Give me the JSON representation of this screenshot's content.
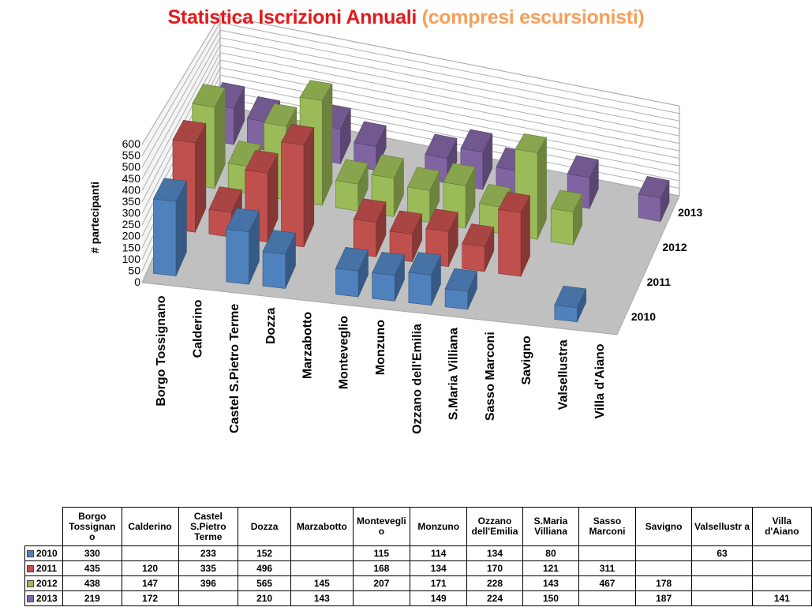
{
  "title": {
    "main": "Statistica Iscrizioni Annuali",
    "sub": "(compresi escursionisti)"
  },
  "chart_data": {
    "type": "bar",
    "subtype": "3d-column",
    "title": "Statistica Iscrizioni Annuali (compresi escursionisti)",
    "ylabel": "# partecipanti",
    "ylim": [
      0,
      600
    ],
    "yticks": [
      "0",
      "50",
      "100",
      "150",
      "200",
      "250",
      "300",
      "350",
      "400",
      "450",
      "500",
      "550",
      "600"
    ],
    "grid": true,
    "categories": [
      "Borgo Tossignano",
      "Calderino",
      "Castel S.Pietro Terme",
      "Dozza",
      "Marzabotto",
      "Monteveglio",
      "Monzuno",
      "Ozzano dell'Emilia",
      "S.Maria Villiana",
      "Sasso Marconi",
      "Savigno",
      "Valsellustra",
      "Villa d'Aiano"
    ],
    "series": [
      {
        "name": "2010",
        "color": "#4f81bd",
        "values": [
          330,
          null,
          233,
          152,
          null,
          115,
          114,
          134,
          80,
          null,
          null,
          63,
          null
        ]
      },
      {
        "name": "2011",
        "color": "#c0504d",
        "values": [
          435,
          120,
          335,
          496,
          null,
          168,
          134,
          170,
          121,
          311,
          null,
          null,
          null
        ]
      },
      {
        "name": "2012",
        "color": "#9bbb59",
        "values": [
          438,
          147,
          396,
          565,
          145,
          207,
          171,
          228,
          143,
          467,
          178,
          null,
          null
        ]
      },
      {
        "name": "2013",
        "color": "#8064a2",
        "values": [
          219,
          172,
          null,
          210,
          143,
          null,
          149,
          224,
          150,
          null,
          187,
          null,
          141
        ]
      }
    ]
  },
  "table": {
    "headers": [
      "Borgo Tossignan o",
      "Calderino",
      "Castel S.Pietro Terme",
      "Dozza",
      "Marzabotto",
      "Montevegli o",
      "Monzuno",
      "Ozzano dell'Emilia",
      "S.Maria Villiana",
      "Sasso Marconi",
      "Savigno",
      "Valsellustr a",
      "Villa d'Aiano"
    ],
    "rows": [
      {
        "label": "2010",
        "color": "#4f81bd",
        "cells": [
          "330",
          "",
          "233",
          "152",
          "",
          "115",
          "114",
          "134",
          "80",
          "",
          "",
          "63",
          ""
        ]
      },
      {
        "label": "2011",
        "color": "#c0504d",
        "cells": [
          "435",
          "120",
          "335",
          "496",
          "",
          "168",
          "134",
          "170",
          "121",
          "311",
          "",
          "",
          ""
        ]
      },
      {
        "label": "2012",
        "color": "#9bbb59",
        "cells": [
          "438",
          "147",
          "396",
          "565",
          "145",
          "207",
          "171",
          "228",
          "143",
          "467",
          "178",
          "",
          ""
        ]
      },
      {
        "label": "2013",
        "color": "#8064a2",
        "cells": [
          "219",
          "172",
          "",
          "210",
          "143",
          "",
          "149",
          "224",
          "150",
          "",
          "187",
          "",
          "141"
        ]
      }
    ]
  }
}
